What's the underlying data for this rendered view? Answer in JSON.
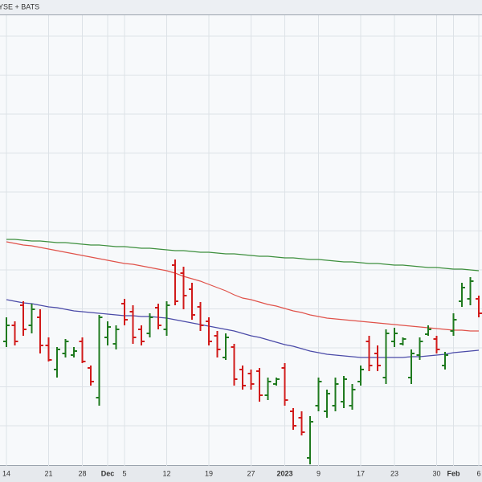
{
  "chart_data": {
    "type": "ohlc",
    "header": "YSE + BATS",
    "categories": [
      "14",
      null,
      null,
      null,
      null,
      "21",
      null,
      null,
      null,
      "28",
      null,
      null,
      "Dec",
      null,
      "5",
      null,
      null,
      null,
      null,
      "12",
      null,
      null,
      null,
      null,
      "19",
      null,
      null,
      null,
      null,
      "27",
      null,
      null,
      null,
      "2023",
      null,
      null,
      null,
      "9",
      null,
      null,
      null,
      null,
      "17",
      null,
      null,
      null,
      "23",
      null,
      null,
      null,
      null,
      "30",
      null,
      "Feb",
      null,
      null,
      "6"
    ],
    "open": [
      153,
      173,
      198,
      173,
      183,
      148,
      118,
      138,
      136,
      153,
      120,
      83,
      158,
      150,
      200,
      190,
      168,
      163,
      195,
      168,
      248,
      238,
      218,
      196,
      178,
      160,
      133,
      146,
      118,
      113,
      116,
      86,
      100,
      120,
      66,
      58,
      8,
      73,
      66,
      73,
      78,
      73,
      103,
      153,
      138,
      108,
      153,
      150,
      108,
      136,
      162,
      156,
      123,
      166,
      203,
      206,
      206
    ],
    "high": [
      183,
      178,
      203,
      200,
      193,
      158,
      146,
      156,
      146,
      158,
      123,
      186,
      178,
      173,
      206,
      198,
      173,
      188,
      200,
      203,
      255,
      246,
      226,
      202,
      183,
      166,
      163,
      150,
      123,
      118,
      120,
      108,
      108,
      126,
      70,
      66,
      60,
      108,
      93,
      108,
      110,
      100,
      123,
      160,
      148,
      168,
      170,
      158,
      143,
      158,
      173,
      160,
      140,
      188,
      226,
      233,
      210
    ],
    "low": [
      146,
      148,
      160,
      163,
      138,
      128,
      108,
      133,
      133,
      126,
      98,
      73,
      148,
      143,
      173,
      150,
      148,
      158,
      168,
      160,
      198,
      193,
      180,
      166,
      148,
      133,
      130,
      98,
      93,
      93,
      78,
      80,
      98,
      73,
      43,
      36,
      0,
      66,
      58,
      66,
      70,
      68,
      98,
      116,
      116,
      100,
      146,
      148,
      100,
      130,
      160,
      138,
      118,
      160,
      196,
      198,
      183
    ],
    "close": [
      173,
      153,
      168,
      193,
      148,
      130,
      143,
      153,
      141,
      128,
      103,
      183,
      171,
      168,
      180,
      158,
      153,
      183,
      173,
      198,
      203,
      210,
      186,
      173,
      153,
      143,
      158,
      106,
      98,
      100,
      86,
      103,
      106,
      80,
      48,
      40,
      53,
      103,
      88,
      100,
      106,
      93,
      118,
      123,
      123,
      163,
      163,
      156,
      138,
      153,
      168,
      143,
      136,
      180,
      220,
      228,
      188
    ],
    "up_color": "#1f7a1f",
    "down_color": "#d11a1a",
    "lines": [
      {
        "color": "#3d8f3d",
        "values": [
          280,
          280,
          279,
          278,
          278,
          277,
          276,
          276,
          275,
          274,
          273,
          273,
          272,
          271,
          271,
          270,
          269,
          269,
          268,
          267,
          266,
          266,
          265,
          264,
          264,
          263,
          262,
          262,
          261,
          260,
          259,
          259,
          258,
          257,
          257,
          256,
          255,
          255,
          254,
          253,
          252,
          252,
          251,
          250,
          250,
          249,
          248,
          248,
          247,
          246,
          245,
          245,
          244,
          243,
          243,
          242,
          241
        ]
      },
      {
        "color": "#e0524a",
        "values": [
          277,
          275,
          273,
          272,
          270,
          268,
          266,
          264,
          262,
          260,
          258,
          256,
          254,
          252,
          250,
          249,
          247,
          245,
          243,
          241,
          238,
          234,
          231,
          228,
          224,
          220,
          216,
          211,
          207,
          205,
          202,
          199,
          197,
          194,
          191,
          189,
          186,
          184,
          182,
          181,
          180,
          179,
          178,
          177,
          176,
          175,
          174,
          173,
          172,
          171,
          170,
          169,
          168,
          167,
          167,
          166,
          166
        ]
      },
      {
        "color": "#4a4aa8",
        "values": [
          205,
          203,
          201,
          200,
          198,
          196,
          195,
          193,
          191,
          190,
          189,
          188,
          187,
          186,
          185,
          185,
          184,
          184,
          183,
          182,
          180,
          178,
          176,
          174,
          172,
          170,
          168,
          166,
          163,
          160,
          158,
          155,
          152,
          149,
          147,
          144,
          141,
          139,
          137,
          136,
          135,
          134,
          133,
          133,
          133,
          133,
          133,
          133,
          134,
          134,
          135,
          136,
          137,
          139,
          140,
          141,
          142
        ]
      }
    ],
    "ylim": [
      0,
      560
    ],
    "grid": true
  }
}
